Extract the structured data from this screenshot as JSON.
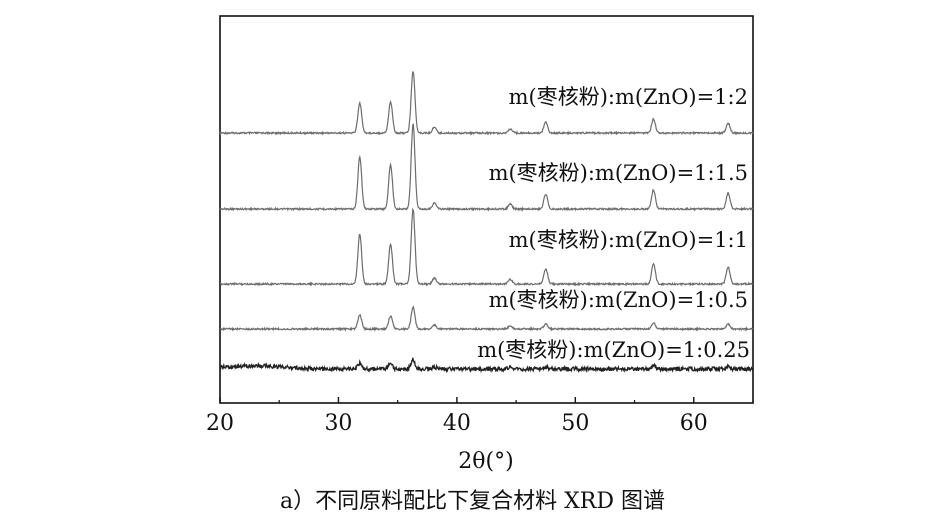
{
  "chart_data": {
    "type": "line",
    "xlabel": "2θ(°)",
    "ylabel": "",
    "xlim": [
      20,
      65
    ],
    "xticks": [
      20,
      30,
      40,
      50,
      60
    ],
    "grid": false,
    "legend": "inline-labels-right",
    "peaks_2theta": [
      31.8,
      34.4,
      36.3,
      47.5,
      56.6,
      62.9,
      38.1,
      44.5
    ],
    "series": [
      {
        "name": "m(枣核粉):m(ZnO)=1:2",
        "peak_heights": [
          0.3,
          0.31,
          0.62,
          0.11,
          0.14,
          0.1,
          0.06,
          0.04
        ]
      },
      {
        "name": "m(枣核粉):m(ZnO)=1:1.5",
        "peak_heights": [
          0.52,
          0.44,
          0.85,
          0.15,
          0.19,
          0.16,
          0.06,
          0.05
        ]
      },
      {
        "name": "m(枣核粉):m(ZnO)=1:1",
        "peak_heights": [
          0.5,
          0.4,
          0.75,
          0.15,
          0.2,
          0.17,
          0.06,
          0.05
        ]
      },
      {
        "name": "m(枣核粉):m(ZnO)=1:0.5",
        "peak_heights": [
          0.14,
          0.13,
          0.22,
          0.05,
          0.06,
          0.05,
          0.04,
          0.03
        ]
      },
      {
        "name": "m(枣核粉):m(ZnO)=1:0.25",
        "peak_heights": [
          0.06,
          0.05,
          0.1,
          0.02,
          0.03,
          0.03,
          0.02,
          0.02
        ]
      }
    ],
    "caption": "a）不同原料配比下复合材料 XRD 图谱"
  },
  "colors": {
    "trace": "#6d6d6d",
    "axis": "#111111"
  }
}
